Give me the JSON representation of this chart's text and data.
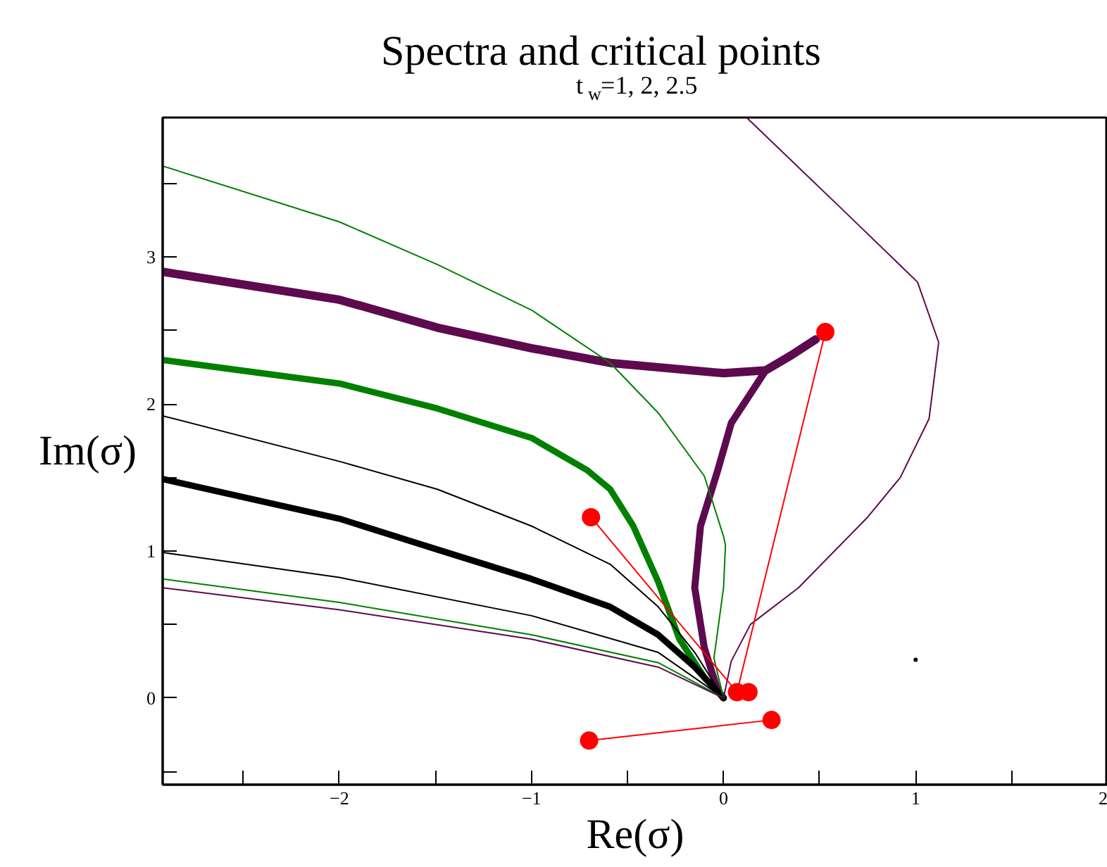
{
  "chart_data": {
    "type": "line",
    "title": "Spectra and critical points",
    "subtitle": "t$_{w}$=1, 2, 2.5",
    "xlabel": "Re(σ)",
    "ylabel": "Im(σ)",
    "xlim": [
      -2.92,
      2.0
    ],
    "ylim": [
      -0.59,
      3.95
    ],
    "xticks": [
      {
        "value": -2.5,
        "label": null
      },
      -2,
      {
        "value": -1.5,
        "label": null
      },
      -1,
      {
        "value": -0.5,
        "label": null
      },
      0,
      {
        "value": 0.5,
        "label": null
      },
      1,
      {
        "value": 1.5,
        "label": null
      },
      2
    ],
    "yticks": [
      {
        "value": -0.5,
        "label": null
      },
      0,
      {
        "value": 0.5,
        "label": null
      },
      1,
      {
        "value": 1.5,
        "label": null
      },
      2,
      {
        "value": 2.5,
        "label": null
      },
      3,
      {
        "value": 3.5,
        "label": null
      }
    ],
    "grid": false,
    "line_style": "solid",
    "series": [
      {
        "color": "#5e0a4e",
        "x": [
          -2.92,
          -2.0,
          -1.49,
          -1.0,
          -0.59,
          0.0,
          0.22,
          0.35,
          0.48
        ],
        "values": [
          2.9,
          2.71,
          2.52,
          2.38,
          2.28,
          2.21,
          2.23,
          2.33,
          2.44
        ]
      },
      {
        "color": "#5e0a4e",
        "x": [
          0.22,
          0.04,
          -0.03,
          -0.12,
          -0.15,
          -0.1,
          -0.03,
          0.0
        ],
        "values": [
          2.23,
          1.87,
          1.55,
          1.17,
          0.75,
          0.34,
          0.05,
          0.0
        ]
      },
      {
        "color": "#008000",
        "x": [
          -2.92,
          -2.0,
          -1.49,
          -1.0,
          -0.71,
          -0.59,
          -0.47,
          -0.34,
          -0.23,
          -0.1,
          0.0
        ],
        "values": [
          2.3,
          2.14,
          1.97,
          1.77,
          1.55,
          1.42,
          1.17,
          0.79,
          0.4,
          0.14,
          0.0
        ]
      },
      {
        "color": "#000000",
        "x": [
          -2.92,
          -2.0,
          -1.49,
          -1.0,
          -0.59,
          -0.34,
          -0.15,
          0.0
        ],
        "values": [
          1.49,
          1.22,
          1.01,
          0.81,
          0.62,
          0.43,
          0.21,
          0.0
        ]
      },
      {
        "color": "#008000",
        "x": [
          -2.92,
          -2.0,
          -1.49,
          -1.0,
          -0.59,
          -0.34,
          -0.1,
          0.0,
          0.01,
          0.0,
          -0.05,
          0.0
        ],
        "values": [
          3.62,
          3.24,
          2.95,
          2.64,
          2.28,
          1.94,
          1.51,
          1.1,
          1.04,
          0.75,
          0.27,
          0.0
        ]
      },
      {
        "color": "#000000",
        "x": [
          -2.92,
          -2.0,
          -1.49,
          -1.0,
          -0.59,
          -0.34,
          -0.15,
          0.0
        ],
        "values": [
          1.92,
          1.61,
          1.42,
          1.17,
          0.91,
          0.62,
          0.31,
          0.0
        ]
      },
      {
        "color": "#000000",
        "x": [
          -2.92,
          -2.0,
          -1.0,
          -0.34,
          0.0
        ],
        "values": [
          0.99,
          0.82,
          0.56,
          0.31,
          0.0
        ]
      },
      {
        "color": "#008000",
        "x": [
          -2.92,
          -2.0,
          -1.0,
          -0.34,
          0.0
        ],
        "values": [
          0.81,
          0.65,
          0.43,
          0.24,
          0.0
        ]
      },
      {
        "color": "#5e0a4e",
        "x": [
          -2.92,
          -2.0,
          -1.0,
          -0.34,
          0.0
        ],
        "values": [
          0.75,
          0.6,
          0.4,
          0.21,
          0.0
        ]
      },
      {
        "color": "#5e0a4e",
        "x": [
          0.12,
          0.63,
          1.01,
          1.12,
          1.07,
          0.92,
          0.75,
          0.39,
          0.14,
          0.04,
          0.0
        ],
        "values": [
          3.95,
          3.31,
          2.83,
          2.42,
          1.9,
          1.5,
          1.23,
          0.75,
          0.5,
          0.25,
          0.0
        ]
      },
      {
        "color": "#ff0000",
        "marker": "circle",
        "x": [
          -0.69,
          0.07,
          0.53,
          null,
          -0.7,
          0.25
        ],
        "values": [
          1.23,
          0.04,
          2.49,
          null,
          -0.29,
          -0.15
        ]
      },
      {
        "type": "scatter",
        "marker": "circle",
        "color": "#ff0000",
        "x": [
          0.13
        ],
        "values": [
          0.04
        ]
      },
      {
        "type": "scatter",
        "marker": "circle",
        "color": "#000000",
        "x": [
          1.0
        ],
        "values": [
          0.26
        ]
      }
    ]
  }
}
